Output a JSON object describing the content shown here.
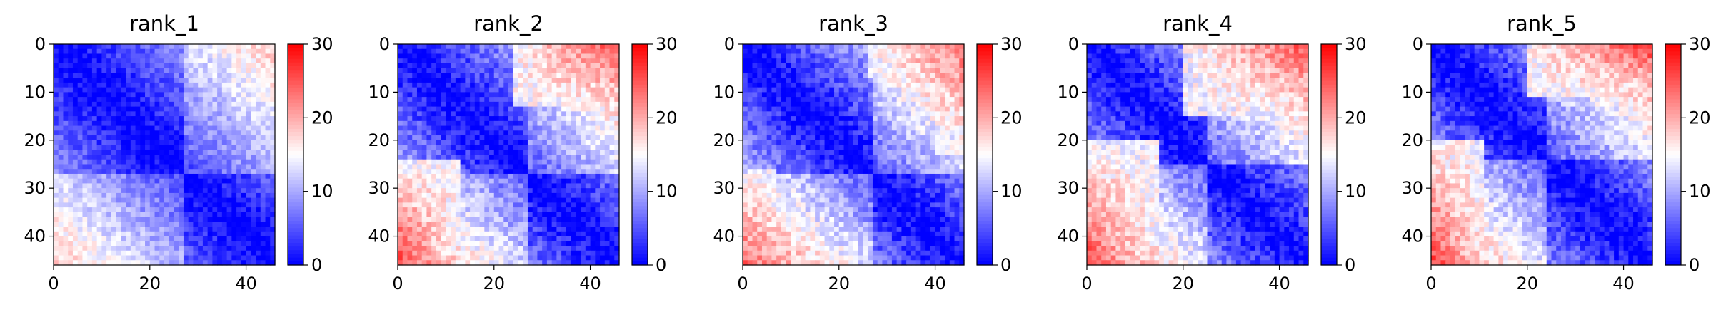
{
  "chart_data": [
    {
      "type": "heatmap",
      "title": "rank_1",
      "size": 46,
      "xticks": [
        0,
        20,
        40
      ],
      "yticks": [
        0,
        10,
        20,
        30,
        40
      ],
      "vmin": 0,
      "vmax": 30,
      "colormap": "bwr",
      "colorbar_ticks": [
        0,
        10,
        20,
        30
      ],
      "domain_boundaries": [
        27
      ],
      "distance_gradient": 0.32,
      "cross_domain_offset": 4,
      "top_right_max": 18,
      "top_right_region": [
        0,
        8,
        30,
        46
      ],
      "noise": 2.5
    },
    {
      "type": "heatmap",
      "title": "rank_2",
      "size": 46,
      "xticks": [
        0,
        20,
        40
      ],
      "yticks": [
        0,
        10,
        20,
        30,
        40
      ],
      "vmin": 0,
      "vmax": 30,
      "colormap": "bwr",
      "colorbar_ticks": [
        0,
        10,
        20,
        30
      ],
      "domain_boundaries": [
        27
      ],
      "distance_gradient": 0.38,
      "cross_domain_offset": 5,
      "top_right_max": 27,
      "top_right_region": [
        0,
        12,
        24,
        46
      ],
      "noise": 3
    },
    {
      "type": "heatmap",
      "title": "rank_3",
      "size": 46,
      "xticks": [
        0,
        20,
        40
      ],
      "yticks": [
        0,
        10,
        20,
        30,
        40
      ],
      "vmin": 0,
      "vmax": 30,
      "colormap": "bwr",
      "colorbar_ticks": [
        0,
        10,
        20,
        30
      ],
      "domain_boundaries": [
        27
      ],
      "distance_gradient": 0.4,
      "cross_domain_offset": 5,
      "top_right_max": 25,
      "top_right_region": [
        0,
        6,
        26,
        46
      ],
      "noise": 3
    },
    {
      "type": "heatmap",
      "title": "rank_4",
      "size": 46,
      "xticks": [
        0,
        20,
        40
      ],
      "yticks": [
        0,
        10,
        20,
        30,
        40
      ],
      "vmin": 0,
      "vmax": 30,
      "colormap": "bwr",
      "colorbar_ticks": [
        0,
        10,
        20,
        30
      ],
      "domain_boundaries": [
        25
      ],
      "distance_gradient": 0.4,
      "cross_domain_offset": 5,
      "top_right_max": 26,
      "top_right_region": [
        0,
        14,
        20,
        46
      ],
      "noise": 3
    },
    {
      "type": "heatmap",
      "title": "rank_5",
      "size": 46,
      "xticks": [
        0,
        20,
        40
      ],
      "yticks": [
        0,
        10,
        20,
        30,
        40
      ],
      "vmin": 0,
      "vmax": 30,
      "colormap": "bwr",
      "colorbar_ticks": [
        0,
        10,
        20,
        30
      ],
      "domain_boundaries": [
        24
      ],
      "distance_gradient": 0.38,
      "cross_domain_offset": 5,
      "top_right_max": 27,
      "top_right_region": [
        0,
        10,
        20,
        46
      ],
      "noise": 3
    }
  ]
}
